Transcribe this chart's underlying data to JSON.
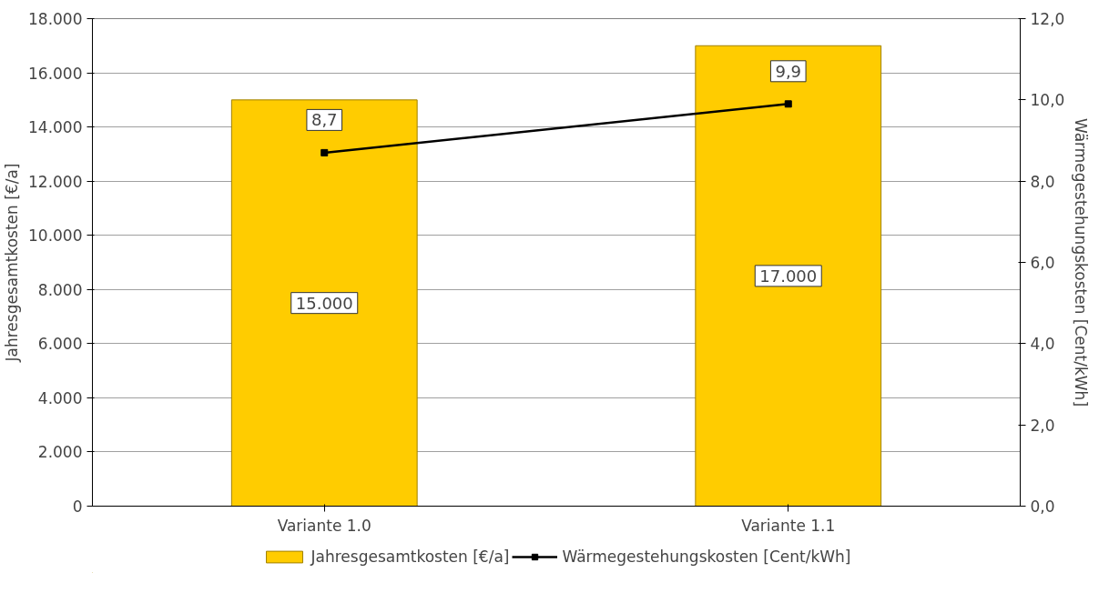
{
  "chart_data": {
    "type": "bar",
    "categories": [
      "Variante 1.0",
      "Variante 1.1"
    ],
    "ylabel": "Jahresgesamtkosten [€/a]",
    "y2label": "Wärmegestehungskosten [Cent/kWh]",
    "ylim": [
      0,
      18000
    ],
    "yticks": [
      {
        "value": 0,
        "label": "0"
      },
      {
        "value": 2000,
        "label": "2.000"
      },
      {
        "value": 4000,
        "label": "4.000"
      },
      {
        "value": 6000,
        "label": "6.000"
      },
      {
        "value": 8000,
        "label": "8.000"
      },
      {
        "value": 10000,
        "label": "10.000"
      },
      {
        "value": 12000,
        "label": "12.000"
      },
      {
        "value": 14000,
        "label": "14.000"
      },
      {
        "value": 16000,
        "label": "16.000"
      },
      {
        "value": 18000,
        "label": "18.000"
      }
    ],
    "y2lim": [
      0,
      12
    ],
    "y2ticks": [
      {
        "value": 0,
        "label": "0,0"
      },
      {
        "value": 2,
        "label": "2,0"
      },
      {
        "value": 4,
        "label": "4,0"
      },
      {
        "value": 6,
        "label": "6,0"
      },
      {
        "value": 8,
        "label": "8,0"
      },
      {
        "value": 10,
        "label": "10,0"
      },
      {
        "value": 12,
        "label": "12,0"
      }
    ],
    "grid": "y",
    "legend": "bottom",
    "marker": "square",
    "series": [
      {
        "name": "Jahresgesamtkosten [€/a]",
        "type": "bar",
        "color": "#ffcc00",
        "values": [
          15000,
          17000
        ],
        "value_labels": [
          "15.000",
          "17.000"
        ]
      },
      {
        "name": "Wärmegestehungskosten [Cent/kWh]",
        "type": "line",
        "axis": "y2",
        "color": "#000000",
        "values": [
          8.7,
          9.9
        ],
        "value_labels": [
          "8,7",
          "9,9"
        ]
      }
    ]
  }
}
